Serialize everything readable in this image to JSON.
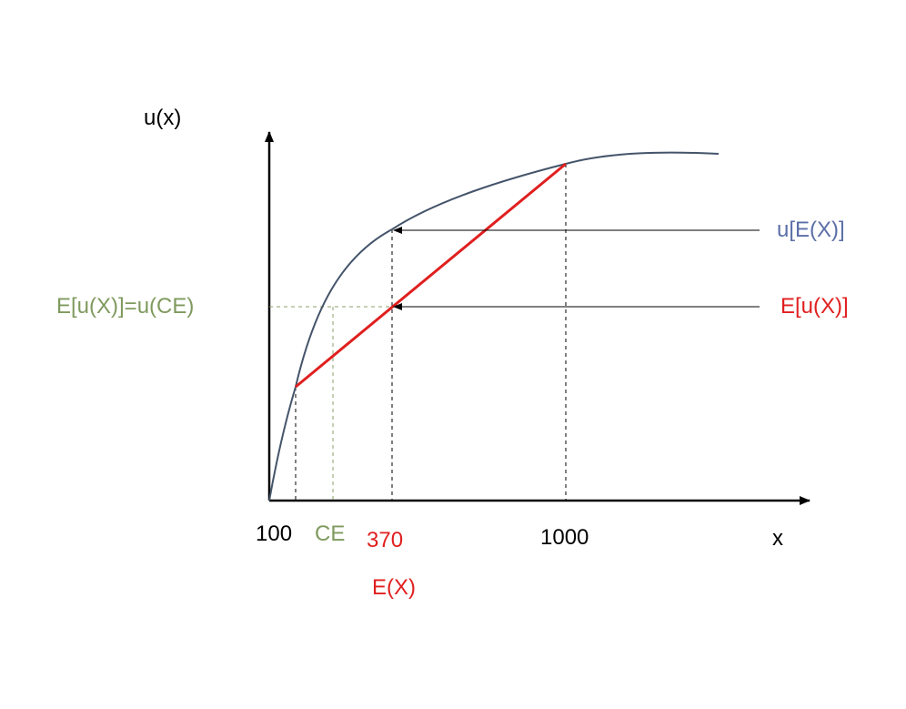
{
  "diagram": {
    "y_axis_label": "u(x)",
    "x_axis_label": "x",
    "x_ticks": {
      "low": "100",
      "ce": "CE",
      "mean": "370",
      "mean_name": "E(X)",
      "high": "1000"
    },
    "labels": {
      "utility_of_expectation": "u[E(X)]",
      "expected_utility": "E[u(X)]",
      "certainty_equivalent": "E[u(X)]=u(CE)"
    },
    "colors": {
      "curve": "#44546a",
      "chord": "#e01f1f",
      "ce": "#7f9a5e",
      "utility_of_expectation_text": "#5b6fa8",
      "axis": "#000000"
    }
  }
}
